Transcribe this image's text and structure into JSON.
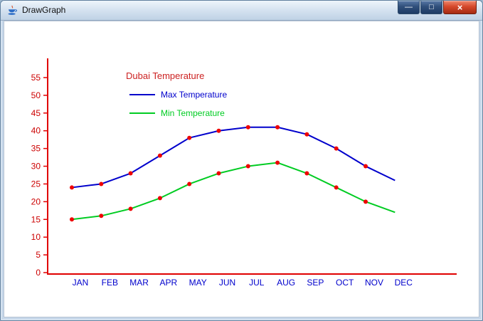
{
  "window": {
    "title": "DrawGraph",
    "controls": [
      {
        "name": "minimize",
        "glyph": "—"
      },
      {
        "name": "maximize",
        "glyph": "□"
      },
      {
        "name": "close",
        "glyph": "×"
      }
    ]
  },
  "chart_data": {
    "type": "line",
    "title": "Dubai Temperature",
    "categories": [
      "JAN",
      "FEB",
      "MAR",
      "APR",
      "MAY",
      "JUN",
      "JUL",
      "AUG",
      "SEP",
      "OCT",
      "NOV",
      "DEC"
    ],
    "series": [
      {
        "name": "Max Temperature",
        "color": "#0000cc",
        "values": [
          24,
          25,
          28,
          33,
          38,
          40,
          41,
          41,
          39,
          35,
          30,
          26
        ]
      },
      {
        "name": "Min Temperature",
        "color": "#00cc22",
        "values": [
          15,
          16,
          18,
          21,
          25,
          28,
          30,
          31,
          28,
          24,
          20,
          17
        ]
      }
    ],
    "ylim": [
      0,
      55
    ],
    "ytick_step": 5,
    "yticks": [
      0,
      5,
      10,
      15,
      20,
      25,
      30,
      35,
      40,
      45,
      50,
      55
    ],
    "grid": false,
    "legend_position": "top-left-inside",
    "colors": {
      "axis": "#e00000",
      "tick_labels": "#cc0000",
      "category_labels": "#0000cc",
      "points": "#ee0000",
      "title": "#cc2222"
    }
  }
}
